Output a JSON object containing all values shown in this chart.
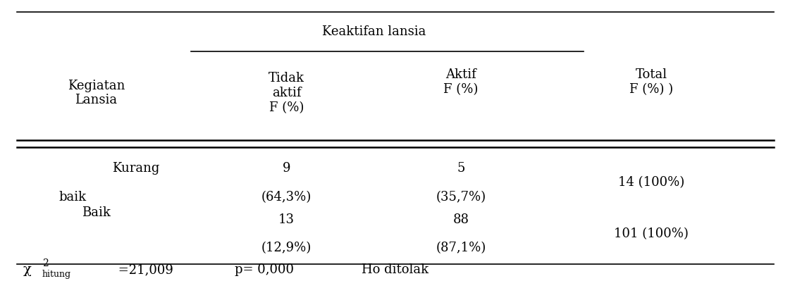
{
  "fig_width": 11.28,
  "fig_height": 3.99,
  "bg_color": "#ffffff",
  "header_group": "Keaktifan lansia",
  "row1_label_top": "Kurang",
  "row1_label_bot": "baik",
  "row1_col1_top": "9",
  "row1_col1_bot": "(64,3%)",
  "row1_col2_top": "5",
  "row1_col2_bot": "(35,7%)",
  "row1_col3": "14 (100%)",
  "row2_label": "Baik",
  "row2_col1_top": "13",
  "row2_col1_bot": "(12,9%)",
  "row2_col2_top": "88",
  "row2_col2_bot": "(87,1%)",
  "row2_col3": "101 (100%)",
  "footer_chi": "χ",
  "footer_chi_sup": "2",
  "footer_chi_sub": "hitung",
  "footer_chi_val": " =21,009",
  "footer_p": "p= 0,000",
  "footer_ho": "Ho ditolak",
  "font_size": 13,
  "font_family": "DejaVu Serif"
}
